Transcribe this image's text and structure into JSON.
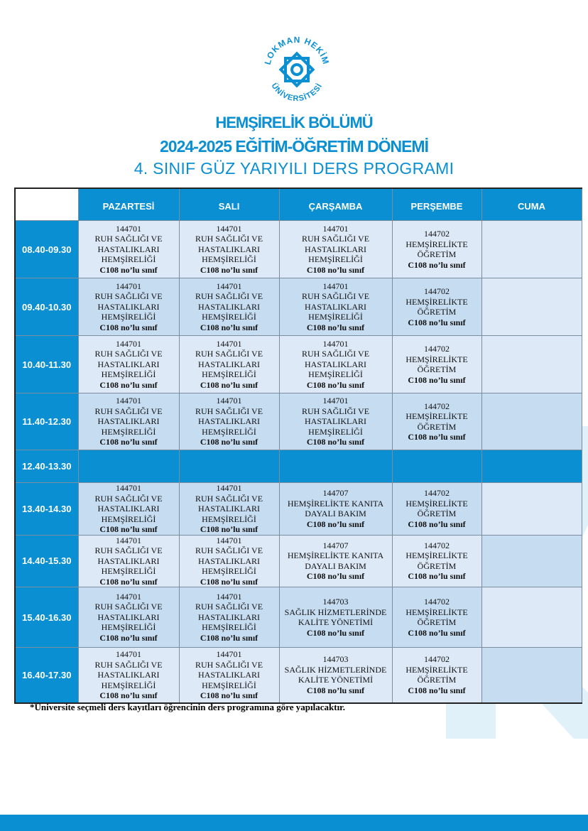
{
  "logo": {
    "text_top": "LOKMAN HEKİM",
    "text_bottom": "ÜNİVERSİTESİ",
    "color": "#0a8fd3"
  },
  "header": {
    "department": "HEMŞİRELİK BÖLÜMÜ",
    "period": "2024-2025 EĞİTİM-ÖĞRETİM DÖNEMİ",
    "program": "4. SINIF GÜZ YARIYILI DERS PROGRAMI"
  },
  "colors": {
    "accent": "#0a8fd3",
    "cell_light": "#dde9f6",
    "cell_dark": "#c6dcf1"
  },
  "table": {
    "days": [
      "PAZARTESİ",
      "SALI",
      "ÇARŞAMBA",
      "PERŞEMBE",
      "CUMA"
    ],
    "rows": [
      {
        "time": "08.40-09.30",
        "cells": [
          "ruh",
          "ruh",
          "ruh",
          "ogr",
          null
        ]
      },
      {
        "time": "09.40-10.30",
        "cells": [
          "ruh",
          "ruh",
          "ruh",
          "ogr",
          null
        ]
      },
      {
        "time": "10.40-11.30",
        "cells": [
          "ruh",
          "ruh",
          "ruh",
          "ogr",
          null
        ]
      },
      {
        "time": "11.40-12.30",
        "cells": [
          "ruh",
          "ruh",
          "ruh",
          "ogr",
          null
        ]
      },
      {
        "time": "12.40-13.30",
        "break": true,
        "cells": [
          null,
          null,
          null,
          null,
          null
        ]
      },
      {
        "time": "13.40-14.30",
        "cells": [
          "ruh",
          "ruh",
          "kanit",
          "ogr",
          null
        ]
      },
      {
        "time": "14.40-15.30",
        "cells": [
          "ruh",
          "ruh",
          "kanit",
          "ogr",
          null
        ]
      },
      {
        "time": "15.40-16.30",
        "cells": [
          "ruh",
          "ruh",
          "kalite",
          "ogr",
          null
        ]
      },
      {
        "time": "16.40-17.30",
        "cells": [
          "ruh",
          "ruh",
          "kalite",
          "ogr",
          null
        ]
      }
    ],
    "courses": {
      "ruh": {
        "code": "144701",
        "lines": [
          "RUH SAĞLIĞI VE",
          "HASTALIKLARI",
          "HEMŞİRELİĞİ"
        ],
        "room": "C108 no’lu sınıf"
      },
      "ogr": {
        "code": "144702",
        "lines": [
          "HEMŞİRELİKTE",
          "ÖĞRETİM"
        ],
        "room": "C108 no’lu sınıf"
      },
      "kanit": {
        "code": "144707",
        "lines": [
          "HEMŞİRELİKTE KANITA",
          "DAYALI BAKIM"
        ],
        "room": "C108 no’lu sınıf"
      },
      "kalite": {
        "code": "144703",
        "lines": [
          "SAĞLIK HİZMETLERİNDE",
          "KALİTE YÖNETİMİ"
        ],
        "room": "C108 no’lu sınıf"
      }
    }
  },
  "note": "*Üniversite seçmeli ders kayıtları öğrencinin ders programına göre yapılacaktır."
}
